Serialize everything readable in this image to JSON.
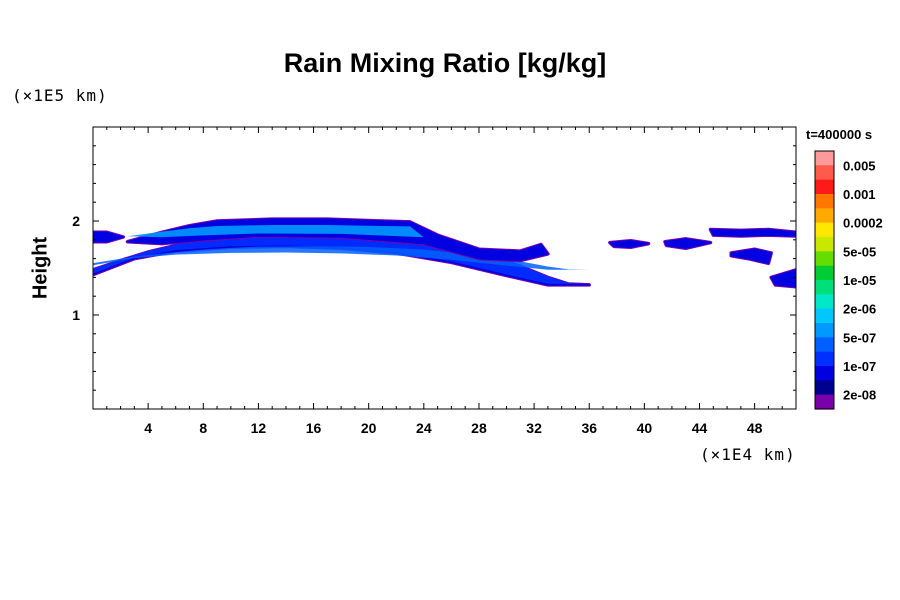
{
  "chart_data": {
    "type": "heatmap",
    "title": "Rain Mixing Ratio [kg/kg]",
    "ylabel": "Height",
    "xlabel": "",
    "x_unit": "(×1E4 km)",
    "y_unit": "(×1E5 km)",
    "time_label": "t=400000 s",
    "xlim": [
      0,
      51
    ],
    "ylim": [
      0,
      3
    ],
    "x_ticks": [
      4,
      8,
      12,
      16,
      20,
      24,
      28,
      32,
      36,
      40,
      44,
      48
    ],
    "y_ticks": [
      1,
      2
    ],
    "colorbar": {
      "labels": [
        "0.005",
        "0.001",
        "0.0002",
        "5e-05",
        "1e-05",
        "2e-06",
        "5e-07",
        "1e-07",
        "2e-08"
      ],
      "colors": [
        "#ff9a9a",
        "#ff5a4a",
        "#ff1a1a",
        "#ff7700",
        "#ffaa00",
        "#ffe800",
        "#c8e800",
        "#66dd00",
        "#00cc33",
        "#00e07a",
        "#00e8c8",
        "#00c8ff",
        "#0099ff",
        "#0060ff",
        "#0030ff",
        "#0000e0",
        "#000090",
        "#7a00aa"
      ]
    },
    "features": [
      {
        "name": "main-rain-band",
        "level": "5e-07",
        "points": [
          [
            0,
            1.48
          ],
          [
            2,
            1.58
          ],
          [
            4,
            1.67
          ],
          [
            6,
            1.74
          ],
          [
            8,
            1.8
          ],
          [
            10,
            1.84
          ],
          [
            12,
            1.87
          ],
          [
            16,
            1.88
          ],
          [
            20,
            1.86
          ],
          [
            24,
            1.8
          ],
          [
            28,
            1.66
          ],
          [
            31,
            1.52
          ],
          [
            33,
            1.4
          ],
          [
            34.5,
            1.33
          ],
          [
            36,
            1.32
          ],
          [
            35,
            1.32
          ],
          [
            33,
            1.32
          ],
          [
            30,
            1.42
          ],
          [
            26,
            1.56
          ],
          [
            22,
            1.66
          ],
          [
            18,
            1.71
          ],
          [
            14,
            1.73
          ],
          [
            10,
            1.72
          ],
          [
            6,
            1.68
          ],
          [
            3,
            1.6
          ],
          [
            0,
            1.43
          ]
        ]
      },
      {
        "name": "upper-rain-band",
        "level": "1e-07",
        "points": [
          [
            2.5,
            1.78
          ],
          [
            5,
            1.88
          ],
          [
            7,
            1.95
          ],
          [
            9,
            2.0
          ],
          [
            13,
            2.02
          ],
          [
            17,
            2.02
          ],
          [
            21,
            2.0
          ],
          [
            23,
            1.99
          ],
          [
            25,
            1.85
          ],
          [
            28,
            1.7
          ],
          [
            31,
            1.68
          ],
          [
            32.5,
            1.75
          ],
          [
            33,
            1.65
          ],
          [
            31,
            1.58
          ],
          [
            28,
            1.6
          ],
          [
            24,
            1.76
          ],
          [
            18,
            1.83
          ],
          [
            12,
            1.84
          ],
          [
            8,
            1.8
          ],
          [
            5,
            1.76
          ]
        ]
      },
      {
        "name": "left-edge-patch",
        "level": "1e-07",
        "points": [
          [
            0,
            1.88
          ],
          [
            1,
            1.88
          ],
          [
            2.2,
            1.83
          ],
          [
            1,
            1.78
          ],
          [
            0,
            1.78
          ]
        ]
      },
      {
        "name": "patch-39",
        "level": "1e-07",
        "points": [
          [
            37.5,
            1.77
          ],
          [
            39,
            1.79
          ],
          [
            40.3,
            1.76
          ],
          [
            39,
            1.72
          ],
          [
            37.8,
            1.73
          ]
        ]
      },
      {
        "name": "patch-43",
        "level": "1e-07",
        "points": [
          [
            41.5,
            1.78
          ],
          [
            43,
            1.81
          ],
          [
            44.8,
            1.77
          ],
          [
            43,
            1.71
          ],
          [
            41.6,
            1.74
          ]
        ]
      },
      {
        "name": "patch-47-upper",
        "level": "2e-08",
        "points": [
          [
            44.8,
            1.91
          ],
          [
            47,
            1.9
          ],
          [
            49,
            1.91
          ],
          [
            51,
            1.88
          ],
          [
            51,
            1.84
          ],
          [
            49,
            1.85
          ],
          [
            47,
            1.84
          ],
          [
            45,
            1.85
          ]
        ]
      },
      {
        "name": "patch-48-mid",
        "level": "1e-07",
        "points": [
          [
            46.3,
            1.66
          ],
          [
            48,
            1.7
          ],
          [
            49.2,
            1.66
          ],
          [
            49,
            1.55
          ],
          [
            47.5,
            1.6
          ],
          [
            46.3,
            1.63
          ]
        ]
      },
      {
        "name": "right-edge-patch",
        "level": "1e-07",
        "points": [
          [
            49.2,
            1.4
          ],
          [
            51,
            1.48
          ],
          [
            51,
            1.3
          ],
          [
            49.5,
            1.32
          ]
        ]
      }
    ]
  }
}
